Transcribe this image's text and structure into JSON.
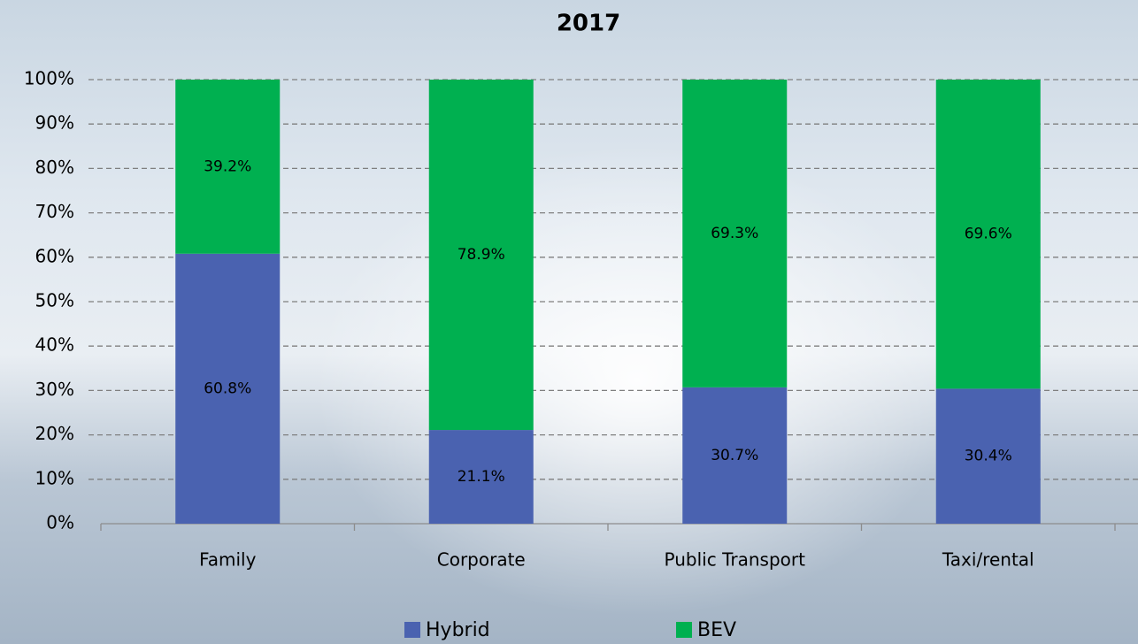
{
  "chart_data": {
    "type": "stacked_bar",
    "title": "2017",
    "categories": [
      "Family",
      "Corporate",
      "Public Transport",
      "Taxi/rental"
    ],
    "series": [
      {
        "name": "Hybrid",
        "color": "#4a62b0",
        "values": [
          60.8,
          21.1,
          30.7,
          30.4
        ],
        "value_labels": [
          "60.8%",
          "21.1%",
          "30.7%",
          "30.4%"
        ]
      },
      {
        "name": "BEV",
        "color": "#00b050",
        "values": [
          39.2,
          78.9,
          69.3,
          69.6
        ],
        "value_labels": [
          "39.2%",
          "78.9%",
          "69.3%",
          "69.6%"
        ]
      }
    ],
    "ylim": [
      0,
      100
    ],
    "yticks": [
      {
        "value": 0,
        "label": "0%"
      },
      {
        "value": 10,
        "label": "10%"
      },
      {
        "value": 20,
        "label": "20%"
      },
      {
        "value": 30,
        "label": "30%"
      },
      {
        "value": 40,
        "label": "40%"
      },
      {
        "value": 50,
        "label": "50%"
      },
      {
        "value": 60,
        "label": "60%"
      },
      {
        "value": 70,
        "label": "70%"
      },
      {
        "value": 80,
        "label": "80%"
      },
      {
        "value": 90,
        "label": "90%"
      },
      {
        "value": 100,
        "label": "100%"
      }
    ],
    "grid": true,
    "legend": "bottom"
  }
}
